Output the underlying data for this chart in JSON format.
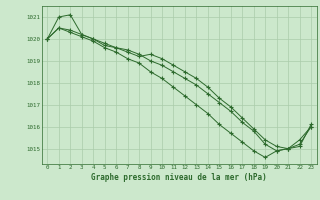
{
  "x": [
    0,
    1,
    2,
    3,
    4,
    5,
    6,
    7,
    8,
    9,
    10,
    11,
    12,
    13,
    14,
    15,
    16,
    17,
    18,
    19,
    20,
    21,
    22,
    23
  ],
  "series1": [
    1020.0,
    1020.5,
    1020.4,
    1020.2,
    1020.0,
    1019.8,
    1019.6,
    1019.4,
    1019.2,
    1019.3,
    1019.1,
    1018.8,
    1018.5,
    1018.2,
    1017.8,
    1017.3,
    1016.9,
    1016.4,
    1015.9,
    1015.4,
    1015.1,
    1015.0,
    1015.2,
    1016.0
  ],
  "series2": [
    1020.0,
    1020.5,
    1020.3,
    1020.1,
    1019.9,
    1019.6,
    1019.4,
    1019.1,
    1018.9,
    1018.5,
    1018.2,
    1017.8,
    1017.4,
    1017.0,
    1016.6,
    1016.1,
    1015.7,
    1015.3,
    1014.9,
    1014.6,
    1014.9,
    1015.0,
    1015.4,
    1016.0
  ],
  "series3": [
    1020.0,
    1021.0,
    1021.1,
    1020.2,
    1020.0,
    1019.7,
    1019.6,
    1019.5,
    1019.3,
    1019.0,
    1018.8,
    1018.5,
    1018.2,
    1017.9,
    1017.5,
    1017.1,
    1016.7,
    1016.2,
    1015.8,
    1015.2,
    1014.9,
    1015.0,
    1015.1,
    1016.1
  ],
  "line_color": "#2d6a2d",
  "marker_color": "#2d6a2d",
  "bg_color": "#cce8cc",
  "grid_color": "#aaccaa",
  "xlabel": "Graphe pression niveau de la mer (hPa)",
  "xlim": [
    -0.5,
    23.5
  ],
  "ylim": [
    1014.3,
    1021.5
  ],
  "yticks": [
    1015,
    1016,
    1017,
    1018,
    1019,
    1020,
    1021
  ],
  "xticks": [
    0,
    1,
    2,
    3,
    4,
    5,
    6,
    7,
    8,
    9,
    10,
    11,
    12,
    13,
    14,
    15,
    16,
    17,
    18,
    19,
    20,
    21,
    22,
    23
  ]
}
